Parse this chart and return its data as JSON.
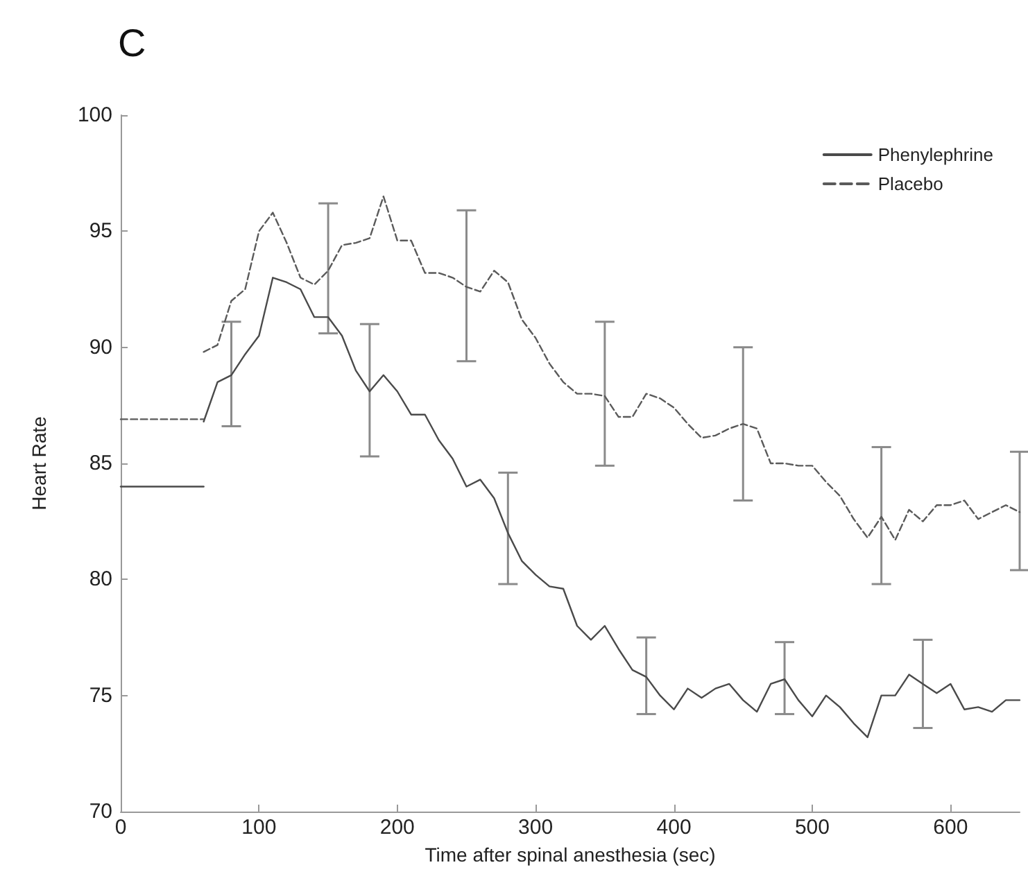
{
  "chart_data": {
    "type": "line",
    "title": "C",
    "xlabel": "Time after spinal anesthesia (sec)",
    "ylabel": "Heart Rate",
    "xlim": [
      0,
      650
    ],
    "xticks": [
      0,
      100,
      200,
      300,
      400,
      500,
      600
    ],
    "ylim": [
      70,
      100
    ],
    "yticks": [
      70,
      75,
      80,
      85,
      90,
      95,
      100
    ],
    "grid": false,
    "legend": "top right",
    "marker": "none",
    "series": [
      {
        "name": "Phenylephrine",
        "color": "#4a4a4a",
        "line_style": "solid",
        "x": [
          60,
          70,
          80,
          90,
          100,
          110,
          120,
          130,
          140,
          150,
          160,
          170,
          180,
          190,
          200,
          210,
          220,
          230,
          240,
          250,
          260,
          270,
          280,
          290,
          300,
          310,
          320,
          330,
          340,
          350,
          360,
          370,
          380,
          390,
          400,
          410,
          420,
          430,
          440,
          450,
          460,
          470,
          480,
          490,
          500,
          510,
          520,
          530,
          540,
          550,
          560,
          570,
          580,
          590,
          600,
          610,
          620,
          630,
          640,
          650
        ],
        "values": [
          86.8,
          88.5,
          88.8,
          89.7,
          90.5,
          93.0,
          92.8,
          92.5,
          91.3,
          91.3,
          90.5,
          89.0,
          88.1,
          88.8,
          88.1,
          87.1,
          87.1,
          86.0,
          85.2,
          84.0,
          84.3,
          83.5,
          82.0,
          80.8,
          80.2,
          79.7,
          79.6,
          78.0,
          77.4,
          78.0,
          77.0,
          76.1,
          75.8,
          75.0,
          74.4,
          75.3,
          74.9,
          75.3,
          75.5,
          74.8,
          74.3,
          75.5,
          75.7,
          74.8,
          74.1,
          75.0,
          74.5,
          73.8,
          73.2,
          75.0,
          75.0,
          75.9,
          75.5,
          75.1,
          75.5,
          74.4,
          74.5,
          74.3,
          74.8,
          74.8
        ],
        "errors": [
          null,
          null,
          [
            86.6,
            91.1
          ],
          null,
          null,
          null,
          null,
          null,
          null,
          null,
          null,
          null,
          [
            85.3,
            91.0
          ],
          null,
          null,
          null,
          null,
          null,
          null,
          null,
          null,
          null,
          [
            79.8,
            84.6
          ],
          null,
          null,
          null,
          null,
          null,
          null,
          null,
          null,
          null,
          [
            74.2,
            77.5
          ],
          null,
          null,
          null,
          null,
          null,
          null,
          null,
          null,
          null,
          [
            74.2,
            77.3
          ],
          null,
          null,
          null,
          null,
          null,
          null,
          null,
          null,
          null,
          [
            73.6,
            77.4
          ],
          null,
          null,
          null,
          null,
          null,
          null,
          null
        ]
      },
      {
        "color": "#4a4a4a",
        "line_style": "solid",
        "x": [
          0,
          60
        ],
        "values": [
          84,
          84
        ]
      },
      {
        "name": "Placebo",
        "color": "#5a5a5a",
        "line_style": "dashed",
        "x": [
          60,
          70,
          80,
          90,
          100,
          110,
          120,
          130,
          140,
          150,
          160,
          170,
          180,
          190,
          200,
          210,
          220,
          230,
          240,
          250,
          260,
          270,
          280,
          290,
          300,
          310,
          320,
          330,
          340,
          350,
          360,
          370,
          380,
          390,
          400,
          410,
          420,
          430,
          440,
          450,
          460,
          470,
          480,
          490,
          500,
          510,
          520,
          530,
          540,
          550,
          560,
          570,
          580,
          590,
          600,
          610,
          620,
          630,
          640,
          650
        ],
        "values": [
          89.8,
          90.1,
          92.0,
          92.5,
          95.0,
          95.8,
          94.5,
          93.0,
          92.7,
          93.3,
          94.4,
          94.5,
          94.7,
          96.5,
          94.6,
          94.6,
          93.2,
          93.2,
          93.0,
          92.6,
          92.4,
          93.3,
          92.8,
          91.2,
          90.4,
          89.3,
          88.5,
          88.0,
          88.0,
          87.9,
          87.0,
          87.0,
          88.0,
          87.8,
          87.4,
          86.7,
          86.1,
          86.2,
          86.5,
          86.7,
          86.5,
          85.0,
          85.0,
          84.9,
          84.9,
          84.2,
          83.6,
          82.6,
          81.8,
          82.7,
          81.7,
          83.0,
          82.5,
          83.2,
          83.2,
          83.4,
          82.6,
          82.9,
          83.2,
          82.9
        ],
        "errors": [
          null,
          null,
          null,
          null,
          null,
          null,
          null,
          null,
          null,
          [
            90.6,
            96.2
          ],
          null,
          null,
          null,
          null,
          null,
          null,
          null,
          null,
          null,
          [
            89.4,
            95.9
          ],
          null,
          null,
          null,
          null,
          null,
          null,
          null,
          null,
          null,
          [
            84.9,
            91.1
          ],
          null,
          null,
          null,
          null,
          null,
          null,
          null,
          null,
          null,
          [
            83.4,
            90.0
          ],
          null,
          null,
          null,
          null,
          null,
          null,
          null,
          null,
          null,
          [
            79.8,
            85.7
          ],
          null,
          null,
          null,
          null,
          null,
          null,
          null,
          null,
          null,
          [
            80.4,
            85.5
          ]
        ]
      },
      {
        "color": "#5a5a5a",
        "line_style": "dashed",
        "x": [
          0,
          60
        ],
        "values": [
          86.9,
          86.9
        ]
      }
    ]
  }
}
